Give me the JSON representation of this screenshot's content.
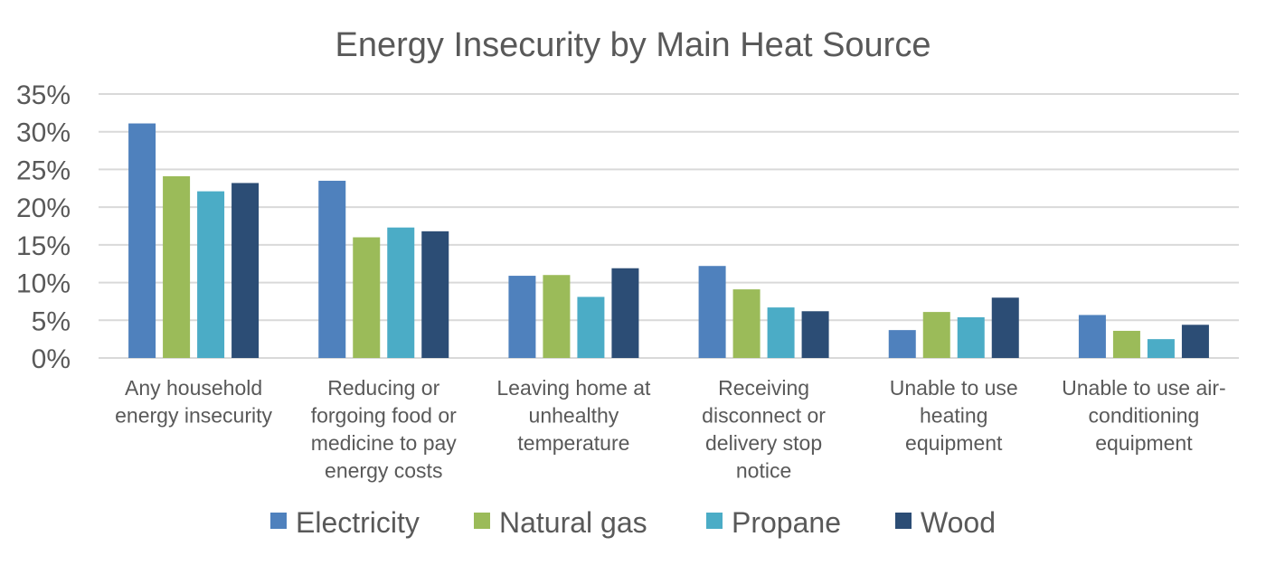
{
  "chart_data": {
    "type": "bar",
    "title": "Energy Insecurity by Main Heat Source",
    "xlabel": "",
    "ylabel": "",
    "ylim": [
      0,
      35
    ],
    "yticks": [
      "0%",
      "5%",
      "10%",
      "15%",
      "20%",
      "25%",
      "30%",
      "35%"
    ],
    "grid": true,
    "legend_position": "bottom",
    "categories": [
      [
        "Any household",
        "energy insecurity"
      ],
      [
        "Reducing or",
        "forgoing food or",
        "medicine to pay",
        "energy costs"
      ],
      [
        "Leaving home at",
        "unhealthy",
        "temperature"
      ],
      [
        "Receiving",
        "disconnect or",
        "delivery stop",
        "notice"
      ],
      [
        "Unable to use",
        "heating",
        "equipment"
      ],
      [
        "Unable to use air-",
        "conditioning",
        "equipment"
      ]
    ],
    "series": [
      {
        "name": "Electricity",
        "color": "#4F81BD",
        "values": [
          31.1,
          23.5,
          10.9,
          12.2,
          3.7,
          5.7
        ]
      },
      {
        "name": "Natural gas",
        "color": "#9BBB59",
        "values": [
          24.1,
          16.0,
          11.0,
          9.1,
          6.1,
          3.6
        ]
      },
      {
        "name": "Propane",
        "color": "#4BACC6",
        "values": [
          22.1,
          17.3,
          8.1,
          6.7,
          5.4,
          2.5
        ]
      },
      {
        "name": "Wood",
        "color": "#2C4D75",
        "values": [
          23.2,
          16.8,
          11.9,
          6.2,
          8.0,
          4.4
        ]
      }
    ]
  }
}
